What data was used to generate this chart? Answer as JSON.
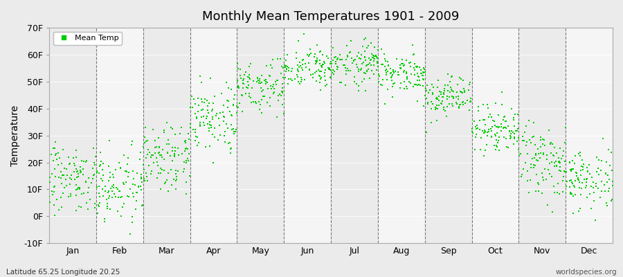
{
  "title": "Monthly Mean Temperatures 1901 - 2009",
  "ylabel": "Temperature",
  "subtitle_left": "Latitude 65.25 Longitude 20.25",
  "subtitle_right": "worldspecies.org",
  "legend_label": "Mean Temp",
  "dot_color": "#00CC00",
  "bg_dark": "#EBEBEB",
  "bg_light": "#F5F5F5",
  "ylim": [
    -10,
    70
  ],
  "yticks": [
    -10,
    0,
    10,
    20,
    30,
    40,
    50,
    60,
    70
  ],
  "ytick_labels": [
    "-10F",
    "0F",
    "10F",
    "20F",
    "30F",
    "40F",
    "50F",
    "60F",
    "70F"
  ],
  "months": [
    "Jan",
    "Feb",
    "Mar",
    "Apr",
    "May",
    "Jun",
    "Jul",
    "Aug",
    "Sep",
    "Oct",
    "Nov",
    "Dec"
  ],
  "month_data": {
    "Jan": {
      "mean": 14,
      "std": 6
    },
    "Feb": {
      "mean": 12,
      "std": 7
    },
    "Mar": {
      "mean": 23,
      "std": 6
    },
    "Apr": {
      "mean": 37,
      "std": 6
    },
    "May": {
      "mean": 49,
      "std": 5
    },
    "Jun": {
      "mean": 55,
      "std": 4
    },
    "Jul": {
      "mean": 57,
      "std": 4
    },
    "Aug": {
      "mean": 53,
      "std": 4
    },
    "Sep": {
      "mean": 44,
      "std": 4
    },
    "Oct": {
      "mean": 33,
      "std": 5
    },
    "Nov": {
      "mean": 20,
      "std": 6
    },
    "Dec": {
      "mean": 14,
      "std": 6
    }
  },
  "n_years": 109,
  "dot_size": 3,
  "marker": "s"
}
